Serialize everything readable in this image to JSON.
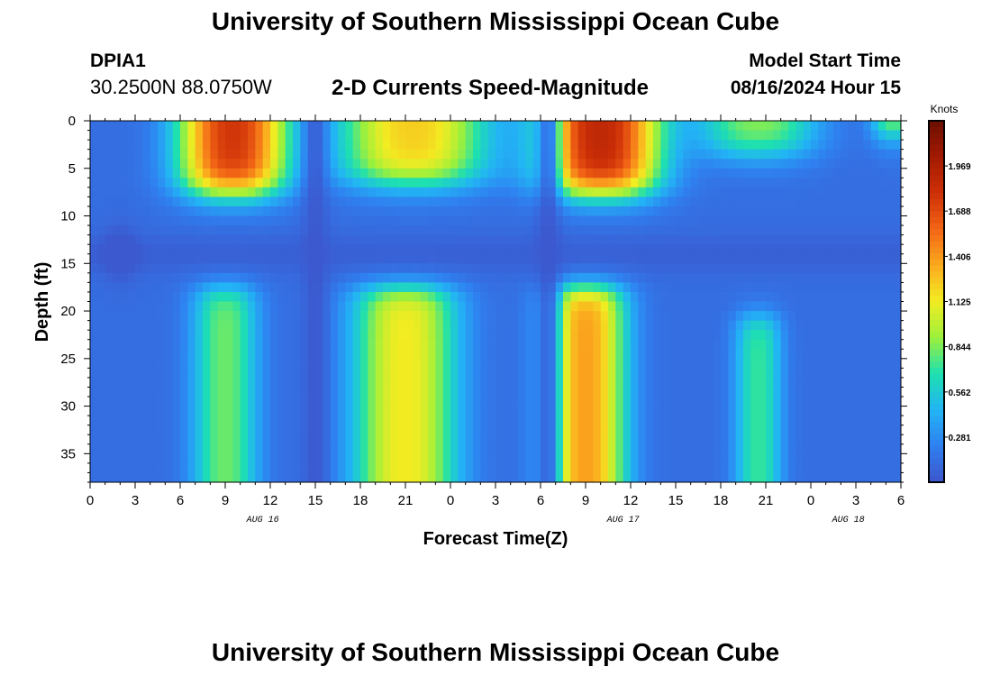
{
  "header": {
    "title": "University of Southern Mississippi Ocean Cube",
    "station": "DPIA1",
    "coordinates": "30.2500N  88.0750W",
    "product": "2-D Currents Speed-Magnitude",
    "model_start_label": "Model Start Time",
    "model_start_value": "08/16/2024 Hour 15",
    "footer_title": "University of Southern Mississippi Ocean Cube"
  },
  "colors": {
    "scale": [
      "#3d55cc",
      "#2f80f0",
      "#22b4f5",
      "#1ee0b0",
      "#9cf03c",
      "#f2ec22",
      "#fbaa1e",
      "#f26515",
      "#cd3008",
      "#a31a00",
      "#6b0f00"
    ]
  },
  "chart_data": {
    "type": "heatmap",
    "title": "2-D Currents Speed-Magnitude",
    "xlabel": "Forecast Time(Z)",
    "ylabel": "Depth (ft)",
    "xlim": [
      0,
      54
    ],
    "ylim": [
      38,
      0
    ],
    "x_tick_labels": [
      "0",
      "3",
      "6",
      "9",
      "12",
      "15",
      "18",
      "21",
      "0",
      "3",
      "6",
      "9",
      "12",
      "15",
      "18",
      "21",
      "0",
      "3",
      "6"
    ],
    "y_ticks": [
      0,
      5,
      10,
      15,
      20,
      25,
      30,
      35
    ],
    "y_tick_labels": [
      "0",
      "5",
      "10",
      "15",
      "20",
      "25",
      "30",
      "35"
    ],
    "date_labels": [
      {
        "text": "AUG 16",
        "forecast_hour": 11.5
      },
      {
        "text": "AUG 17",
        "forecast_hour": 35.5
      },
      {
        "text": "AUG 18",
        "forecast_hour": 50.5
      }
    ],
    "colorbar": {
      "label": "Knots",
      "min": 0,
      "max": 2.25,
      "ticks": [
        0.281,
        0.562,
        0.844,
        1.125,
        1.406,
        1.688,
        1.969
      ],
      "tick_labels": [
        "0.281",
        "0.562",
        "0.844",
        "1.125",
        "1.406",
        "1.688",
        "1.969"
      ]
    },
    "speed_model": {
      "background": 0.13,
      "minimum": 0.02,
      "surface_layer": [
        {
          "hour": 9.5,
          "speed": 1.65,
          "hour_width": 3.6,
          "bottom_depth": 7.5
        },
        {
          "hour": 21.5,
          "speed": 1.1,
          "hour_width": 5.0,
          "bottom_depth": 6.5
        },
        {
          "hour": 34.0,
          "speed": 1.75,
          "hour_width": 4.0,
          "bottom_depth": 7.5
        },
        {
          "hour": 44.5,
          "speed": 0.75,
          "hour_width": 4.0,
          "bottom_depth": 3.5
        },
        {
          "hour": 53.5,
          "speed": 0.85,
          "hour_width": 1.5,
          "bottom_depth": 1.5
        }
      ],
      "bottom_layer": [
        {
          "hour": 9.0,
          "speed": 0.68,
          "hour_width": 2.2,
          "top_depth": 17.5
        },
        {
          "hour": 21.0,
          "speed": 1.0,
          "hour_width": 3.5,
          "top_depth": 17.5
        },
        {
          "hour": 33.0,
          "speed": 1.25,
          "hour_width": 2.7,
          "top_depth": 17.5
        },
        {
          "hour": 44.5,
          "speed": 0.58,
          "hour_width": 1.6,
          "top_depth": 20.5
        }
      ],
      "minimum_depth": 14.0,
      "minimum_hours": [
        15.0,
        30.5
      ],
      "low_spot": {
        "hour": 2.0,
        "depth": 14.0
      }
    }
  }
}
